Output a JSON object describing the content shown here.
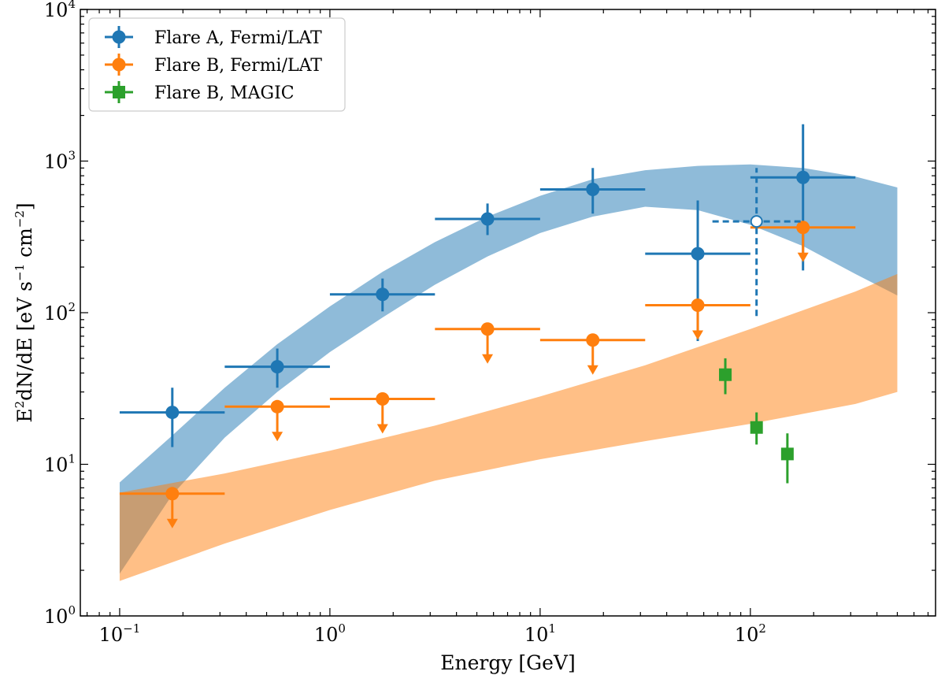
{
  "chart_data": {
    "type": "scatter",
    "title": "",
    "xlabel": "Energy [GeV]",
    "ylabel_main": "E",
    "ylabel_sup": "2",
    "ylabel_rest": "dN/dE [eV s",
    "ylabel_sup2": "−1",
    "ylabel_rest2": " cm",
    "ylabel_sup3": "−2",
    "ylabel_end": "]",
    "xscale": "log",
    "yscale": "log",
    "xlim": [
      0.065,
      760
    ],
    "ylim": [
      1,
      10000
    ],
    "x_ticks": [
      {
        "value": 0.1,
        "base": "10",
        "exp": "−1"
      },
      {
        "value": 1,
        "base": "10",
        "exp": "0"
      },
      {
        "value": 10,
        "base": "10",
        "exp": "1"
      },
      {
        "value": 100,
        "base": "10",
        "exp": "2"
      }
    ],
    "y_ticks": [
      {
        "value": 1,
        "base": "10",
        "exp": "0"
      },
      {
        "value": 10,
        "base": "10",
        "exp": "1"
      },
      {
        "value": 100,
        "base": "10",
        "exp": "2"
      },
      {
        "value": 1000,
        "base": "10",
        "exp": "3"
      },
      {
        "value": 10000,
        "base": "10",
        "exp": "4"
      }
    ],
    "legend": {
      "position": "top-left",
      "entries": [
        {
          "label": "Flare A, Fermi/LAT",
          "color": "#1f77b4",
          "marker": "circle"
        },
        {
          "label": "Flare B, Fermi/LAT",
          "color": "#ff7f0e",
          "marker": "circle"
        },
        {
          "label": "Flare B, MAGIC",
          "color": "#2ca02c",
          "marker": "square"
        }
      ]
    },
    "series": [
      {
        "name": "Flare A, Fermi/LAT",
        "color": "#1f77b4",
        "marker": "circle",
        "points": [
          {
            "x": 0.178,
            "y": 22,
            "xlo": 0.1,
            "xhi": 0.316,
            "ylo": 13,
            "yhi": 32
          },
          {
            "x": 0.562,
            "y": 44,
            "xlo": 0.316,
            "xhi": 1.0,
            "ylo": 32,
            "yhi": 58
          },
          {
            "x": 1.78,
            "y": 132,
            "xlo": 1.0,
            "xhi": 3.16,
            "ylo": 102,
            "yhi": 168
          },
          {
            "x": 5.62,
            "y": 415,
            "xlo": 3.16,
            "xhi": 10.0,
            "ylo": 325,
            "yhi": 525
          },
          {
            "x": 17.8,
            "y": 650,
            "xlo": 10.0,
            "xhi": 31.6,
            "ylo": 450,
            "yhi": 900
          },
          {
            "x": 56.2,
            "y": 245,
            "xlo": 31.6,
            "xhi": 100.0,
            "ylo": 65,
            "yhi": 550
          },
          {
            "x": 178,
            "y": 780,
            "xlo": 100.0,
            "xhi": 316,
            "ylo": 190,
            "yhi": 1750
          }
        ]
      },
      {
        "name": "Flare B, Fermi/LAT (upper limits)",
        "color": "#ff7f0e",
        "marker": "circle",
        "upper_limit": true,
        "points": [
          {
            "x": 0.178,
            "y": 6.4,
            "xlo": 0.1,
            "xhi": 0.316
          },
          {
            "x": 0.562,
            "y": 24,
            "xlo": 0.316,
            "xhi": 1.0
          },
          {
            "x": 1.78,
            "y": 27,
            "xlo": 1.0,
            "xhi": 3.16
          },
          {
            "x": 5.62,
            "y": 78,
            "xlo": 3.16,
            "xhi": 10.0
          },
          {
            "x": 17.8,
            "y": 66,
            "xlo": 10.0,
            "xhi": 31.6
          },
          {
            "x": 56.2,
            "y": 112,
            "xlo": 31.6,
            "xhi": 100.0
          },
          {
            "x": 178,
            "y": 365,
            "xlo": 100.0,
            "xhi": 316
          }
        ]
      },
      {
        "name": "Flare B, MAGIC",
        "color": "#2ca02c",
        "marker": "square",
        "points": [
          {
            "x": 76,
            "y": 39,
            "ylo": 29,
            "yhi": 50
          },
          {
            "x": 107,
            "y": 17.5,
            "ylo": 13.5,
            "yhi": 22
          },
          {
            "x": 150,
            "y": 11.7,
            "ylo": 7.5,
            "yhi": 16
          }
        ]
      },
      {
        "name": "Flare A, dashed upper limit",
        "color": "#1f77b4",
        "marker": "open-circle",
        "dashed": true,
        "points": [
          {
            "x": 107,
            "y": 400,
            "xlo": 66,
            "xhi": 178,
            "ylo": 95,
            "yhi": 900
          }
        ]
      }
    ],
    "bands": [
      {
        "name": "Flare A butterfly",
        "color": "#1f77b4",
        "opacity": 0.5,
        "x": [
          0.1,
          0.178,
          0.316,
          0.562,
          1.0,
          1.78,
          3.16,
          5.62,
          10.0,
          17.8,
          31.6,
          56.2,
          100,
          178,
          316,
          500
        ],
        "upper": [
          7.6,
          15.5,
          32,
          62,
          110,
          186,
          292,
          430,
          590,
          760,
          870,
          930,
          950,
          900,
          790,
          670
        ],
        "lower": [
          1.9,
          6.3,
          15,
          30,
          55,
          93,
          153,
          235,
          335,
          430,
          500,
          475,
          380,
          275,
          180,
          130
        ]
      },
      {
        "name": "Flare B butterfly",
        "color": "#ff7f0e",
        "opacity": 0.5,
        "x": [
          0.1,
          0.316,
          1.0,
          3.16,
          10.0,
          31.6,
          100,
          316,
          500
        ],
        "upper": [
          6.5,
          8.7,
          12.3,
          18,
          28,
          45,
          78,
          138,
          180
        ],
        "lower": [
          1.7,
          3.0,
          5.0,
          7.8,
          10.8,
          14.2,
          18.5,
          25,
          30
        ]
      }
    ]
  }
}
